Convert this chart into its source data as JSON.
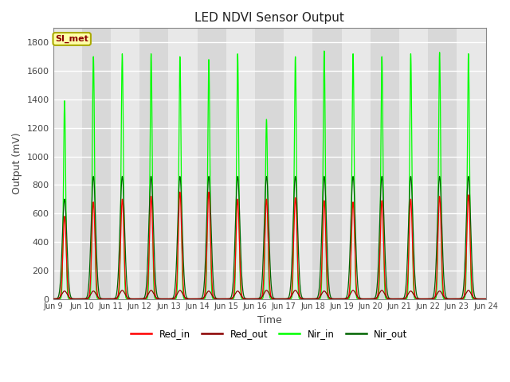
{
  "title": "LED NDVI Sensor Output",
  "xlabel": "Time",
  "ylabel": "Output (mV)",
  "ylim": [
    0,
    1900
  ],
  "background_color": "#ffffff",
  "plot_bg_color": "#d8d8d8",
  "alt_band_color": "#e8e8e8",
  "grid_color": "#ffffff",
  "legend_label": "SI_met",
  "num_days": 15,
  "series": {
    "Red_in": {
      "color": "#ff0000"
    },
    "Red_out": {
      "color": "#8b0000"
    },
    "Nir_in": {
      "color": "#00ff00"
    },
    "Nir_out": {
      "color": "#006400"
    }
  },
  "tick_labels": [
    "Jun 9",
    "Jun 10",
    "Jun 11",
    "Jun 12",
    "Jun 13",
    "Jun 14",
    "Jun 15",
    "Jun 16",
    "Jun 17",
    "Jun 18",
    "Jun 19",
    "Jun 20",
    "Jun 21",
    "Jun 22",
    "Jun 23",
    "Jun 24"
  ],
  "red_in_peaks": [
    580,
    680,
    700,
    720,
    750,
    750,
    700,
    700,
    710,
    690,
    680,
    690,
    700,
    720,
    730
  ],
  "red_out_peaks": [
    55,
    55,
    60,
    60,
    60,
    55,
    55,
    60,
    60,
    55,
    60,
    60,
    55,
    55,
    60
  ],
  "nir_in_peaks": [
    1390,
    1700,
    1720,
    1720,
    1700,
    1680,
    1720,
    1260,
    1700,
    1740,
    1720,
    1700,
    1720,
    1730,
    1720
  ],
  "nir_out_peaks": [
    700,
    860,
    860,
    860,
    860,
    860,
    860,
    860,
    860,
    860,
    860,
    860,
    860,
    860,
    860
  ]
}
